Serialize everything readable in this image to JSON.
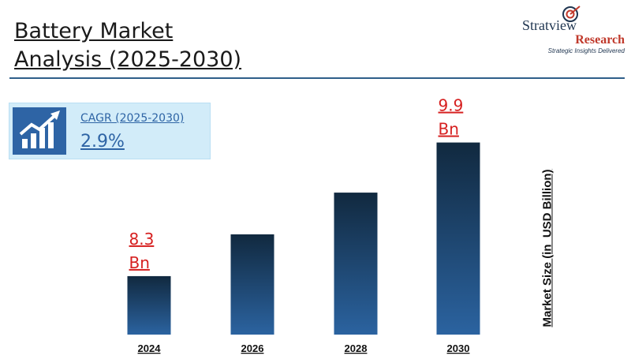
{
  "header": {
    "title_line1": "Battery Market",
    "title_line2": "Analysis (2025-2030)"
  },
  "logo": {
    "name": "Stratview",
    "sub": "Research",
    "tagline": "Strategic Insights Delivered",
    "icon": "target-arrow-icon"
  },
  "cagr": {
    "label": "CAGR (2025-2030)",
    "value": "2.9%",
    "icon": "growth-chart-icon"
  },
  "colors": {
    "accent": "#2e64a5",
    "bar_top": "#11293f",
    "bar_bottom": "#2b63a0",
    "value_label": "#d62020"
  },
  "chart_data": {
    "type": "bar",
    "title": "Battery Market Analysis (2025-2030)",
    "categories": [
      "2024",
      "2026",
      "2028",
      "2030"
    ],
    "values": [
      8.3,
      8.8,
      9.3,
      9.9
    ],
    "value_labels": [
      [
        "8.3",
        "Bn"
      ],
      null,
      null,
      [
        "9.9",
        "Bn"
      ]
    ],
    "ylabel": "Market Size (in  USD Billion)",
    "xlabel": "",
    "ylim": [
      7.6,
      10.0
    ],
    "grid": false,
    "legend": "none"
  }
}
